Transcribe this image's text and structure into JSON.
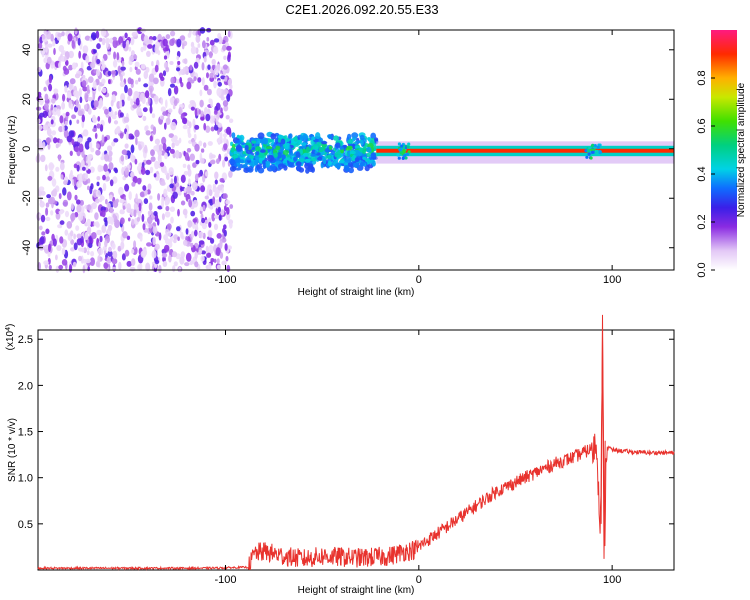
{
  "title": "C2E1.2026.092.20.55.E33",
  "chart_data": [
    {
      "type": "heatmap",
      "xlabel": "Height of straight line (km)",
      "ylabel": "Frequency (Hz)",
      "xlim": [
        -197,
        132
      ],
      "ylim": [
        -49,
        48
      ],
      "x_ticks": [
        -100,
        0,
        100
      ],
      "x_tick_labels": [
        "-100",
        "0",
        "100"
      ],
      "y_ticks": [
        -40,
        -20,
        0,
        20,
        40
      ],
      "y_tick_labels": [
        "-40",
        "-20",
        "0",
        "20",
        "40"
      ],
      "colorbar": {
        "label": "Normalized spectral amplitude",
        "range": [
          0,
          1
        ],
        "ticks": [
          0.0,
          0.2,
          0.4,
          0.6,
          0.8
        ],
        "tick_labels": [
          "0.0",
          "0.2",
          "0.4",
          "0.6",
          "0.8"
        ]
      },
      "regions": [
        {
          "x": [
            -197,
            -97
          ],
          "freq": [
            -49,
            48
          ],
          "amplitude": [
            0.05,
            0.25
          ],
          "pattern": "scattered noise"
        },
        {
          "x": [
            -97,
            -22
          ],
          "freq": [
            -10,
            10
          ],
          "amplitude": [
            0.15,
            0.45
          ],
          "pattern": "broadened signal"
        },
        {
          "x": [
            -22,
            132
          ],
          "freq": [
            -2,
            0
          ],
          "amplitude": [
            0.8,
            1.0
          ],
          "pattern": "narrow carrier line"
        }
      ]
    },
    {
      "type": "line",
      "xlabel": "Height of straight line (km)",
      "ylabel": "SNR (10 * v/v)",
      "multiplier": "(x10^4)",
      "xlim": [
        -197,
        132
      ],
      "ylim": [
        0,
        2.6
      ],
      "x_ticks": [
        -100,
        0,
        100
      ],
      "x_tick_labels": [
        "-100",
        "0",
        "100"
      ],
      "y_ticks": [
        0.5,
        1.0,
        1.5,
        2.0,
        2.5
      ],
      "y_tick_labels": [
        "0.5",
        "1.0",
        "1.5",
        "2.0",
        "2.5"
      ],
      "color": "#e8322d",
      "x": [
        -197,
        -150,
        -110,
        -88,
        -85,
        -80,
        -70,
        -60,
        -50,
        -40,
        -30,
        -23,
        -15,
        -8,
        -2,
        3,
        10,
        20,
        30,
        40,
        50,
        60,
        70,
        80,
        88,
        92,
        94,
        95,
        96,
        97,
        100,
        110,
        120,
        132
      ],
      "y": [
        0.02,
        0.02,
        0.02,
        0.03,
        0.18,
        0.2,
        0.15,
        0.12,
        0.15,
        0.14,
        0.13,
        0.14,
        0.15,
        0.2,
        0.22,
        0.3,
        0.4,
        0.55,
        0.7,
        0.85,
        0.95,
        1.05,
        1.15,
        1.22,
        1.3,
        1.35,
        0.5,
        2.58,
        0.15,
        1.35,
        1.3,
        1.28,
        1.27,
        1.27
      ]
    }
  ]
}
